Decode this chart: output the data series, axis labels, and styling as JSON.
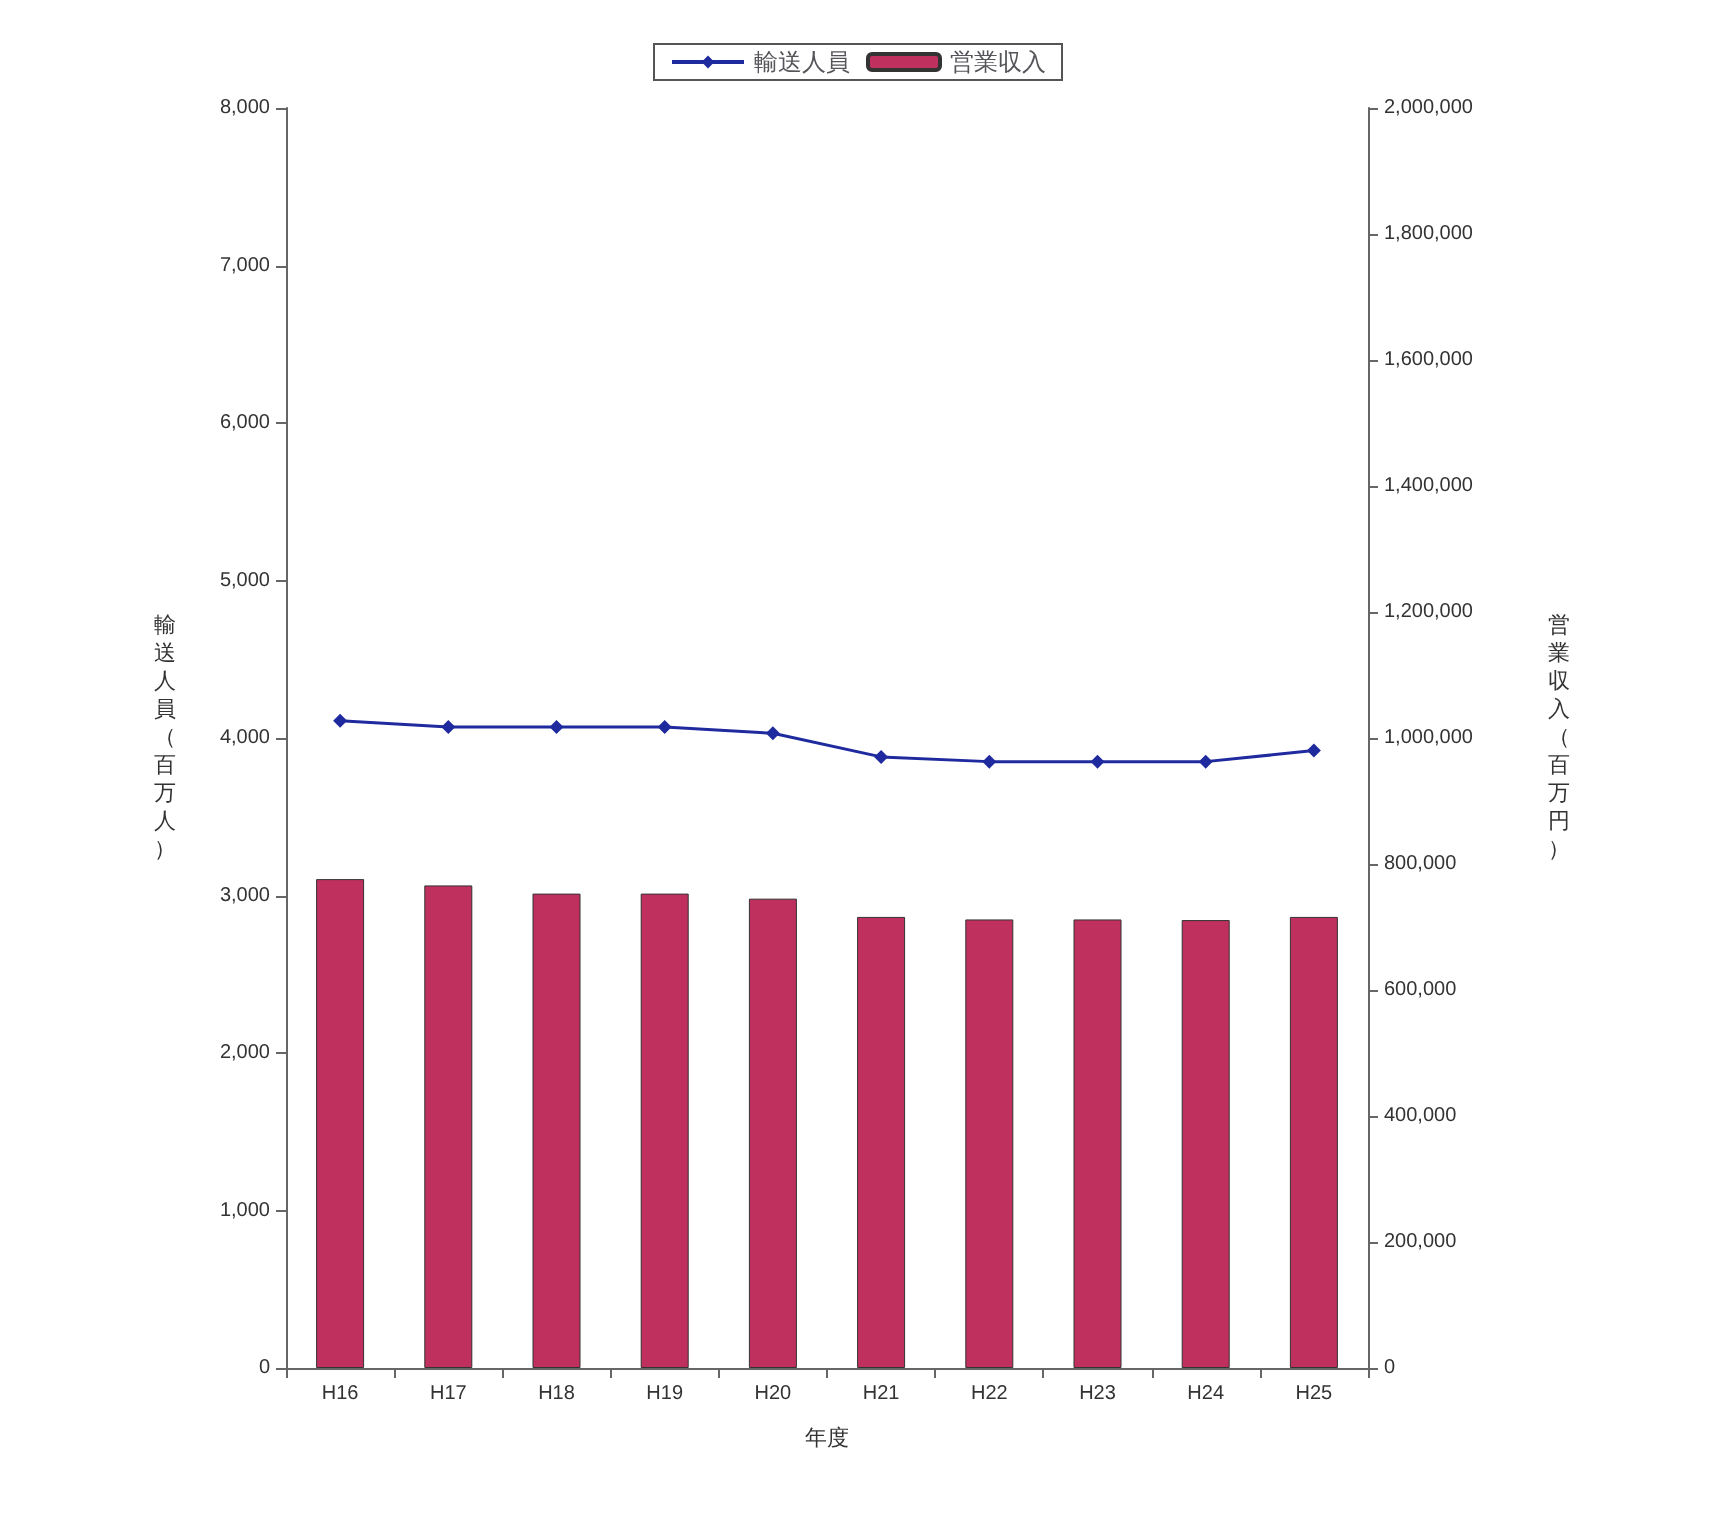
{
  "chart_data": {
    "type": "bar",
    "categories": [
      "H16",
      "H17",
      "H18",
      "H19",
      "H20",
      "H21",
      "H22",
      "H23",
      "H24",
      "H25"
    ],
    "series": [
      {
        "name": "輸送人員",
        "type": "line",
        "color": "#1f2a9e",
        "values": [
          4110,
          4070,
          4070,
          4070,
          4030,
          3880,
          3850,
          3850,
          3850,
          3920
        ]
      },
      {
        "name": "営業収入",
        "axis": "y2",
        "color": "#c0305f",
        "values": [
          776000,
          766000,
          753000,
          753000,
          745000,
          716000,
          712000,
          712000,
          711000,
          716000
        ]
      }
    ],
    "xlabel": "年度",
    "ylabel": "輸送人員（百万人）",
    "y2label": "営業収入（百万円）",
    "ylim": [
      0,
      8000
    ],
    "yticks": [
      0,
      {
        "value": 1000,
        "label": "1,000"
      },
      {
        "value": 2000,
        "label": "2,000"
      },
      {
        "value": 3000,
        "label": "3,000"
      },
      {
        "value": 4000,
        "label": "4,000"
      },
      {
        "value": 5000,
        "label": "5,000"
      },
      {
        "value": 6000,
        "label": "6,000"
      },
      {
        "value": 7000,
        "label": "7,000"
      },
      {
        "value": 8000,
        "label": "8,000"
      }
    ],
    "y2lim": [
      0,
      2000000
    ],
    "y2ticks": [
      0,
      {
        "value": 200000,
        "label": "200,000"
      },
      {
        "value": 400000,
        "label": "400,000"
      },
      {
        "value": 600000,
        "label": "600,000"
      },
      {
        "value": 800000,
        "label": "800,000"
      },
      {
        "value": 1000000,
        "label": "1,000,000"
      },
      {
        "value": 1200000,
        "label": "1,200,000"
      },
      {
        "value": 1400000,
        "label": "1,400,000"
      },
      {
        "value": 1600000,
        "label": "1,600,000"
      },
      {
        "value": 1800000,
        "label": "1,800,000"
      },
      {
        "value": 2000000,
        "label": "2,000,000"
      }
    ],
    "legend": "top",
    "marker": "diamond",
    "grid": false
  }
}
